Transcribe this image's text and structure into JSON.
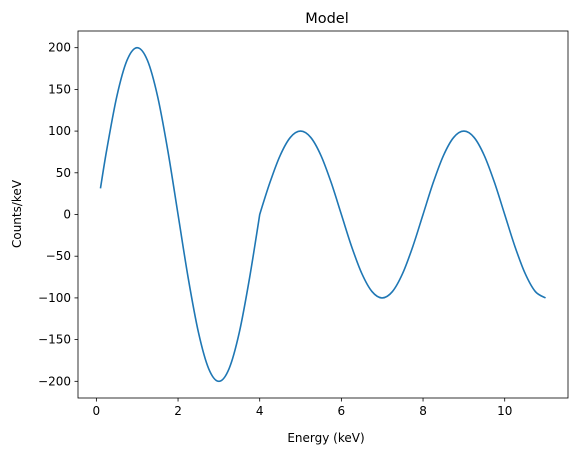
{
  "chart_data": {
    "type": "line",
    "title": "Model",
    "xlabel": "Energy (keV)",
    "ylabel": "Counts/keV",
    "xlim": [
      -0.45,
      11.55
    ],
    "ylim": [
      -220,
      220
    ],
    "xticks": [
      0,
      2,
      4,
      6,
      8,
      10
    ],
    "yticks": [
      -200,
      -150,
      -100,
      -50,
      0,
      50,
      100,
      150,
      200
    ],
    "grid": false,
    "series": [
      {
        "color": "#1f77b4",
        "x": [
          0.1,
          0.25,
          0.5,
          0.75,
          1.0,
          1.25,
          1.5,
          1.75,
          2.0,
          2.25,
          2.5,
          2.75,
          3.0,
          3.25,
          3.5,
          3.75,
          4.0,
          4.25,
          4.5,
          4.75,
          5.0,
          5.25,
          5.5,
          5.75,
          6.0,
          6.25,
          6.5,
          6.75,
          7.0,
          7.25,
          7.5,
          7.75,
          8.0,
          8.25,
          8.5,
          8.75,
          9.0,
          9.25,
          9.5,
          9.75,
          10.0,
          10.25,
          10.5,
          10.75,
          11.0
        ],
        "y": [
          31.3,
          76.5,
          141.4,
          184.8,
          200.0,
          184.8,
          141.4,
          76.5,
          0.0,
          -76.5,
          -141.4,
          -184.8,
          -200.0,
          -184.8,
          -141.4,
          -76.5,
          0.0,
          38.3,
          70.7,
          92.4,
          100.0,
          92.4,
          70.7,
          38.3,
          0.0,
          -38.3,
          -70.7,
          -92.4,
          -100.0,
          -92.4,
          -70.7,
          -38.3,
          0.0,
          38.3,
          70.7,
          92.4,
          100.0,
          92.4,
          70.7,
          38.3,
          0.0,
          -38.3,
          -70.7,
          -92.4,
          -100.0
        ]
      }
    ]
  }
}
